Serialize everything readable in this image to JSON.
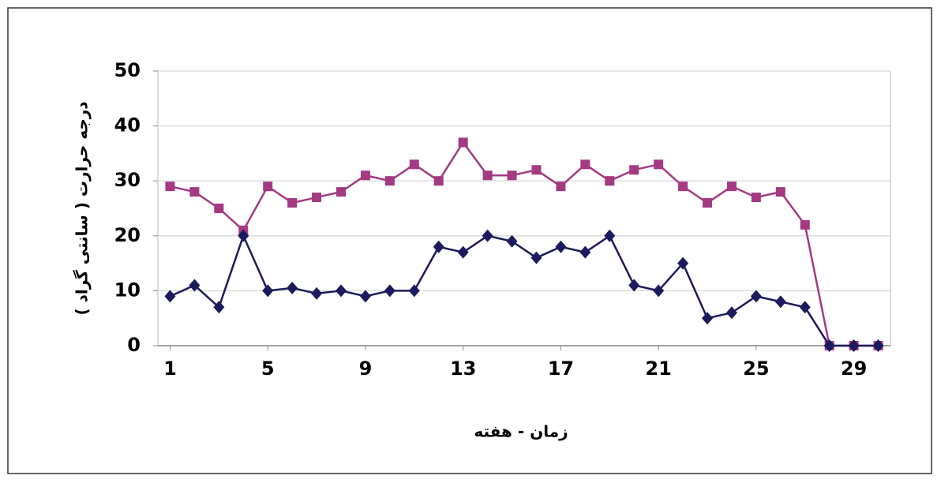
{
  "chart_data": {
    "type": "line",
    "y_label": "درجه حرارت ( سانتی گراد )",
    "x_label": "زمان - هفته",
    "x": [
      1,
      2,
      3,
      4,
      5,
      6,
      7,
      8,
      9,
      10,
      11,
      12,
      13,
      14,
      15,
      16,
      17,
      18,
      19,
      20,
      21,
      22,
      23,
      24,
      25,
      26,
      27,
      28,
      29,
      30
    ],
    "series": [
      {
        "color": "#a33a82",
        "marker": "square",
        "values": [
          29,
          28,
          25,
          21,
          29,
          26,
          27,
          28,
          31,
          30,
          33,
          30,
          37,
          31,
          31,
          32,
          29,
          33,
          30,
          32,
          33,
          29,
          26,
          29,
          27,
          28,
          22,
          0,
          0,
          0
        ]
      },
      {
        "color": "#1c1a5c",
        "marker": "diamond",
        "values": [
          9,
          11,
          7,
          20,
          10,
          10.5,
          9.5,
          10,
          9,
          10,
          10,
          18,
          17,
          20,
          19,
          16,
          18,
          17,
          20,
          11,
          10,
          15,
          5,
          6,
          9,
          8,
          7,
          0,
          0,
          0
        ]
      }
    ],
    "xlim": [
      0.5,
      30.5
    ],
    "xticks": [
      1,
      5,
      9,
      13,
      17,
      21,
      25,
      29
    ],
    "ylim": [
      0,
      50
    ],
    "yticks": [
      0,
      10,
      20,
      30,
      40,
      50
    ],
    "grid": true
  }
}
